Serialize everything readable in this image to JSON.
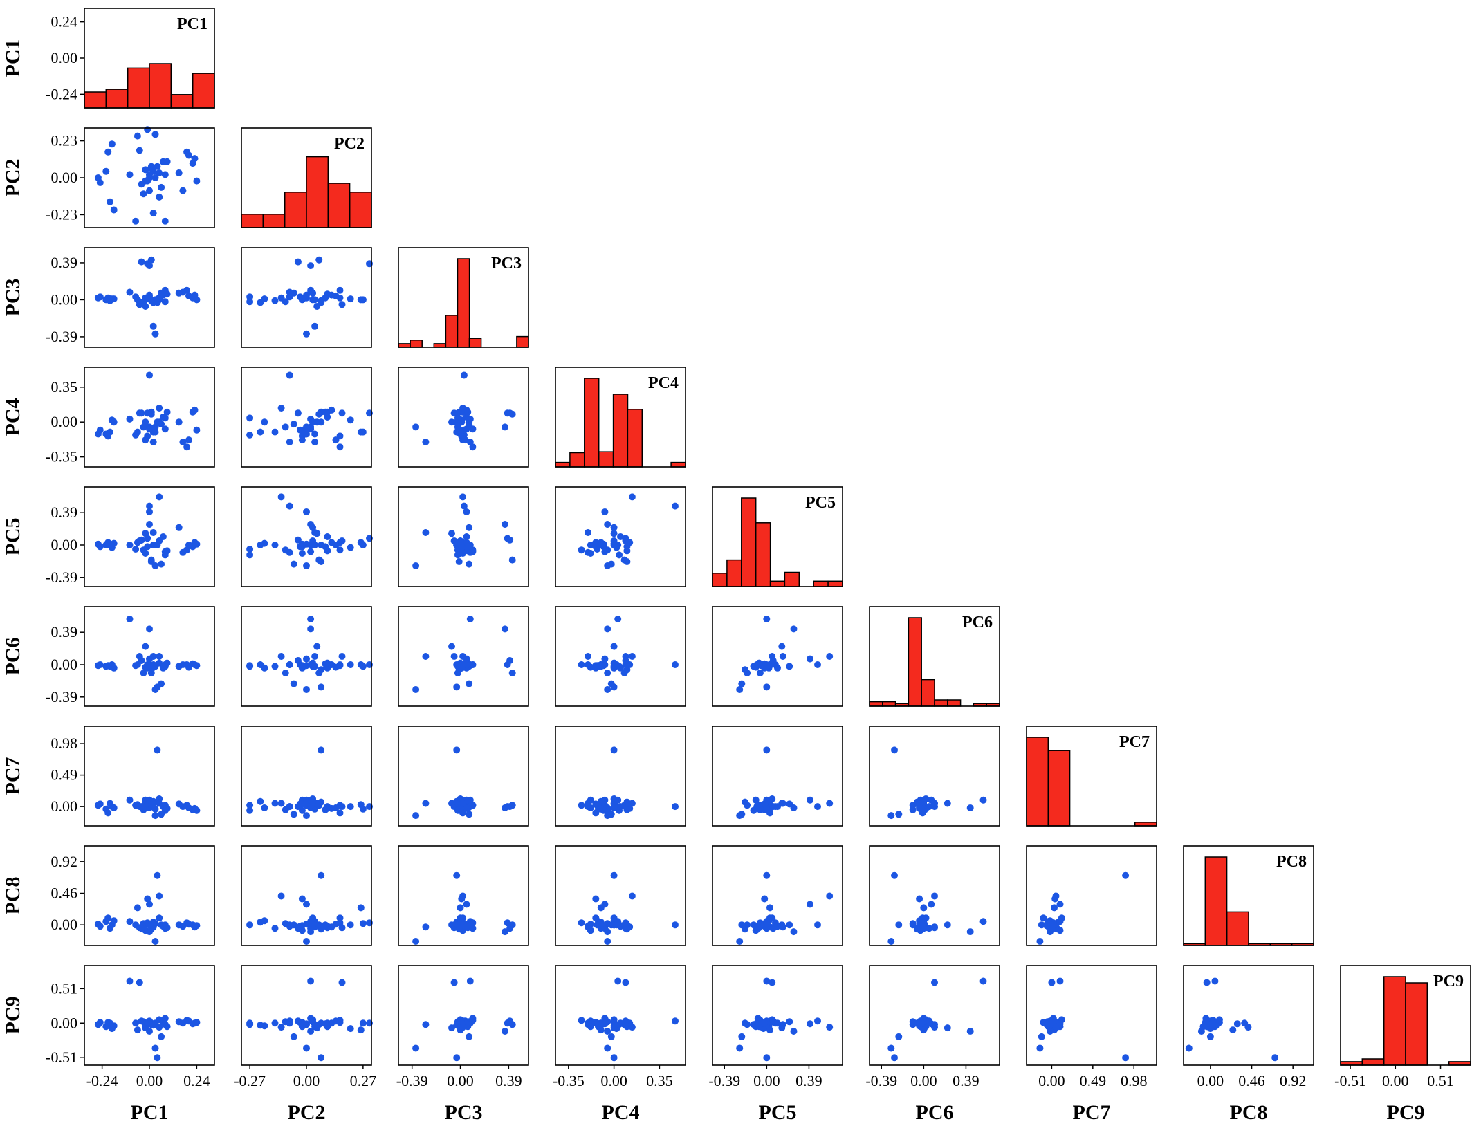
{
  "chart_data": {
    "type": "scatter-matrix",
    "variables": [
      "PC1",
      "PC2",
      "PC3",
      "PC4",
      "PC5",
      "PC6",
      "PC7",
      "PC8",
      "PC9"
    ],
    "ranges": [
      [
        -0.33,
        0.33
      ],
      [
        -0.31,
        0.31
      ],
      [
        -0.5,
        0.55
      ],
      [
        -0.45,
        0.55
      ],
      [
        -0.5,
        0.7
      ],
      [
        -0.5,
        0.7
      ],
      [
        -0.3,
        1.25
      ],
      [
        -0.3,
        1.15
      ],
      [
        -0.62,
        0.85
      ]
    ],
    "ticks": {
      "PC1": {
        "values": [
          -0.24,
          0.0,
          0.24
        ],
        "labels": [
          "-0.24",
          "0.00",
          "0.24"
        ]
      },
      "PC2": {
        "values": [
          -0.23,
          0.0,
          0.23
        ],
        "labels": [
          "-0.23",
          "0.00",
          "0.23"
        ]
      },
      "PC3": {
        "values": [
          -0.39,
          0.0,
          0.39
        ],
        "labels": [
          "-0.39",
          "0.00",
          "0.39"
        ]
      },
      "PC4": {
        "values": [
          -0.35,
          0.0,
          0.35
        ],
        "labels": [
          "-0.35",
          "0.00",
          "0.35"
        ]
      },
      "PC5": {
        "values": [
          -0.39,
          0.0,
          0.39
        ],
        "labels": [
          "-0.39",
          "0.00",
          "0.39"
        ]
      },
      "PC6": {
        "values": [
          -0.39,
          0.0,
          0.39
        ],
        "labels": [
          "-0.39",
          "0.00",
          "0.39"
        ]
      },
      "PC7": {
        "values": [
          0.0,
          0.49,
          0.98
        ],
        "labels": [
          "0.00",
          "0.49",
          "0.98"
        ]
      },
      "PC8": {
        "values": [
          0.0,
          0.46,
          0.92
        ],
        "labels": [
          "0.00",
          "0.46",
          "0.92"
        ]
      },
      "PC9": {
        "values": [
          -0.51,
          0.0,
          0.51
        ],
        "labels": [
          "-0.51",
          "0.00",
          "0.51"
        ]
      }
    },
    "bottom_ticks": {
      "PC1": {
        "values": [
          -0.24,
          0.0,
          0.24
        ],
        "labels": [
          "-0.24",
          "0.00",
          "0.24"
        ]
      },
      "PC2": {
        "values": [
          -0.27,
          0.0,
          0.27
        ],
        "labels": [
          "-0.27",
          "0.00",
          "0.27"
        ]
      },
      "PC3": {
        "values": [
          -0.39,
          0.0,
          0.39
        ],
        "labels": [
          "-0.39",
          "0.00",
          "0.39"
        ]
      },
      "PC4": {
        "values": [
          -0.35,
          0.0,
          0.35
        ],
        "labels": [
          "-0.35",
          "0.00",
          "0.35"
        ]
      },
      "PC5": {
        "values": [
          -0.39,
          0.0,
          0.39
        ],
        "labels": [
          "-0.39",
          "0.00",
          "0.39"
        ]
      },
      "PC6": {
        "values": [
          -0.39,
          0.0,
          0.39
        ],
        "labels": [
          "-0.39",
          "0.00",
          "0.39"
        ]
      },
      "PC7": {
        "values": [
          0.0,
          0.49,
          0.98
        ],
        "labels": [
          "0.00",
          "0.49",
          "0.98"
        ]
      },
      "PC8": {
        "values": [
          0.0,
          0.46,
          0.92
        ],
        "labels": [
          "0.00",
          "0.46",
          "0.92"
        ]
      },
      "PC9": {
        "values": [
          -0.51,
          0.0,
          0.51
        ],
        "labels": [
          "-0.51",
          "0.00",
          "0.51"
        ]
      }
    },
    "histograms": {
      "PC1": [
        0.18,
        0.21,
        0.45,
        0.5,
        0.15,
        0.39
      ],
      "PC2": [
        0.15,
        0.15,
        0.4,
        0.8,
        0.5,
        0.4
      ],
      "PC3": [
        0.04,
        0.08,
        0.0,
        0.04,
        0.36,
        1.0,
        0.1,
        0.0,
        0.0,
        0.0,
        0.12
      ],
      "PC4": [
        0.05,
        0.16,
        1.0,
        0.17,
        0.82,
        0.65,
        0.0,
        0.0,
        0.05
      ],
      "PC5": [
        0.15,
        0.3,
        1.0,
        0.72,
        0.06,
        0.16,
        0.0,
        0.06,
        0.06
      ],
      "PC6": [
        0.05,
        0.05,
        0.03,
        1.0,
        0.3,
        0.07,
        0.07,
        0.0,
        0.03,
        0.03
      ],
      "PC7": [
        1.0,
        0.85,
        0.0,
        0.0,
        0.0,
        0.04
      ],
      "PC8": [
        0.02,
        1.0,
        0.38,
        0.02,
        0.02,
        0.02
      ],
      "PC9": [
        0.04,
        0.07,
        1.0,
        0.93,
        0.0,
        0.04
      ]
    },
    "color_points": "#1c56e3",
    "color_bars": "#f42a1e",
    "points": [
      {
        "PC1": -0.26,
        "PC2": 0.0,
        "PC3": 0.02,
        "PC4": -0.12,
        "PC5": 0.01,
        "PC6": -0.01,
        "PC7": 0.02,
        "PC8": 0.01,
        "PC9": -0.02
      },
      {
        "PC1": -0.25,
        "PC2": -0.03,
        "PC3": 0.03,
        "PC4": -0.08,
        "PC5": -0.02,
        "PC6": 0.0,
        "PC7": 0.04,
        "PC8": -0.02,
        "PC9": 0.01
      },
      {
        "PC1": -0.22,
        "PC2": 0.04,
        "PC3": 0.0,
        "PC4": -0.12,
        "PC5": 0.0,
        "PC6": -0.02,
        "PC7": -0.04,
        "PC8": 0.05,
        "PC9": -0.05
      },
      {
        "PC1": -0.21,
        "PC2": 0.16,
        "PC3": 0.02,
        "PC4": -0.14,
        "PC5": 0.03,
        "PC6": -0.01,
        "PC7": -0.1,
        "PC8": 0.1,
        "PC9": 0.01
      },
      {
        "PC1": -0.19,
        "PC2": 0.21,
        "PC3": 0.01,
        "PC4": 0.02,
        "PC5": -0.03,
        "PC6": 0.0,
        "PC7": 0.0,
        "PC8": 0.0,
        "PC9": -0.08
      },
      {
        "PC1": -0.2,
        "PC2": -0.15,
        "PC3": -0.01,
        "PC4": -0.1,
        "PC5": 0.0,
        "PC6": -0.02,
        "PC7": 0.05,
        "PC8": -0.05,
        "PC9": 0.0
      },
      {
        "PC1": -0.18,
        "PC2": -0.2,
        "PC3": 0.01,
        "PC4": 0.0,
        "PC5": 0.02,
        "PC6": -0.04,
        "PC7": -0.02,
        "PC8": 0.06,
        "PC9": -0.04
      },
      {
        "PC1": -0.07,
        "PC2": -0.27,
        "PC3": 0.03,
        "PC4": -0.13,
        "PC5": -0.05,
        "PC6": -0.01,
        "PC7": 0.02,
        "PC8": 0.0,
        "PC9": 0.0
      },
      {
        "PC1": -0.06,
        "PC2": 0.26,
        "PC3": 0.0,
        "PC4": -0.1,
        "PC5": 0.03,
        "PC6": 0.0,
        "PC7": 0.03,
        "PC8": 0.25,
        "PC9": -0.1
      },
      {
        "PC1": -0.05,
        "PC2": 0.17,
        "PC3": -0.05,
        "PC4": 0.09,
        "PC5": 0.05,
        "PC6": 0.1,
        "PC7": 0.0,
        "PC8": -0.04,
        "PC9": 0.6
      },
      {
        "PC1": -0.02,
        "PC2": 0.05,
        "PC3": -0.07,
        "PC4": 0.0,
        "PC5": 0.14,
        "PC6": 0.22,
        "PC7": 0.05,
        "PC8": 0.0,
        "PC9": -0.07
      },
      {
        "PC1": -0.03,
        "PC2": -0.1,
        "PC3": -0.02,
        "PC4": -0.05,
        "PC5": -0.06,
        "PC6": -0.1,
        "PC7": -0.05,
        "PC8": 0.02,
        "PC9": 0.02
      },
      {
        "PC1": -0.02,
        "PC2": -0.02,
        "PC3": 0.02,
        "PC4": -0.18,
        "PC5": -0.1,
        "PC6": -0.03,
        "PC7": 0.1,
        "PC8": -0.08,
        "PC9": -0.05
      },
      {
        "PC1": -0.01,
        "PC2": 0.3,
        "PC3": 0.38,
        "PC4": 0.09,
        "PC5": 0.08,
        "PC6": 0.0,
        "PC7": 0.0,
        "PC8": 0.03,
        "PC9": 0.0
      },
      {
        "PC1": 0.0,
        "PC2": 0.02,
        "PC3": 0.36,
        "PC4": -0.05,
        "PC5": 0.25,
        "PC6": 0.43,
        "PC7": -0.02,
        "PC8": -0.1,
        "PC9": -0.12
      },
      {
        "PC1": 0.0,
        "PC2": -0.08,
        "PC3": 0.03,
        "PC4": 0.47,
        "PC5": 0.47,
        "PC6": 0.0,
        "PC7": 0.0,
        "PC8": 0.0,
        "PC9": 0.03
      },
      {
        "PC1": 0.01,
        "PC2": 0.07,
        "PC3": -0.01,
        "PC4": 0.1,
        "PC5": -0.2,
        "PC6": -0.06,
        "PC7": 0.07,
        "PC8": -0.06,
        "PC9": 0.0
      },
      {
        "PC1": 0.02,
        "PC2": -0.22,
        "PC3": -0.03,
        "PC4": -0.1,
        "PC5": 0.0,
        "PC6": 0.0,
        "PC7": 0.08,
        "PC8": 0.04,
        "PC9": -0.03
      },
      {
        "PC1": 0.02,
        "PC2": 0.04,
        "PC3": -0.28,
        "PC4": -0.2,
        "PC5": 0.15,
        "PC6": 0.1,
        "PC7": 0.05,
        "PC8": -0.03,
        "PC9": -0.02
      },
      {
        "PC1": 0.03,
        "PC2": 0.0,
        "PC3": -0.36,
        "PC4": -0.05,
        "PC5": -0.25,
        "PC6": -0.3,
        "PC7": -0.14,
        "PC8": -0.24,
        "PC9": -0.37
      },
      {
        "PC1": 0.04,
        "PC2": 0.07,
        "PC3": -0.03,
        "PC4": 0.0,
        "PC5": 0.0,
        "PC6": -0.27,
        "PC7": 0.88,
        "PC8": 0.72,
        "PC9": -0.51
      },
      {
        "PC1": 0.05,
        "PC2": 0.03,
        "PC3": 0.0,
        "PC4": 0.0,
        "PC5": 0.05,
        "PC6": 0.02,
        "PC7": 0.12,
        "PC8": 0.1,
        "PC9": 0.05
      },
      {
        "PC1": 0.06,
        "PC2": -0.06,
        "PC3": 0.07,
        "PC4": -0.02,
        "PC5": -0.23,
        "PC6": -0.23,
        "PC7": -0.12,
        "PC8": 0.0,
        "PC9": -0.2
      },
      {
        "PC1": 0.07,
        "PC2": 0.1,
        "PC3": 0.05,
        "PC4": 0.05,
        "PC5": 0.1,
        "PC6": -0.04,
        "PC7": 0.0,
        "PC8": -0.02,
        "PC9": 0.0
      },
      {
        "PC1": 0.08,
        "PC2": 0.02,
        "PC3": 0.1,
        "PC4": -0.07,
        "PC5": -0.08,
        "PC6": 0.0,
        "PC7": 0.02,
        "PC8": -0.05,
        "PC9": 0.07
      },
      {
        "PC1": 0.08,
        "PC2": -0.27,
        "PC3": -0.02,
        "PC4": 0.04,
        "PC5": -0.12,
        "PC6": -0.02,
        "PC7": -0.06,
        "PC8": 0.0,
        "PC9": -0.02
      },
      {
        "PC1": 0.09,
        "PC2": 0.1,
        "PC3": 0.06,
        "PC4": 0.1,
        "PC5": -0.07,
        "PC6": 0.02,
        "PC7": -0.03,
        "PC8": -0.04,
        "PC9": -0.05
      },
      {
        "PC1": 0.15,
        "PC2": 0.03,
        "PC3": 0.07,
        "PC4": 0.0,
        "PC5": 0.21,
        "PC6": -0.02,
        "PC7": 0.04,
        "PC8": 0.0,
        "PC9": 0.02
      },
      {
        "PC1": 0.17,
        "PC2": -0.08,
        "PC3": 0.08,
        "PC4": -0.2,
        "PC5": -0.09,
        "PC6": 0.0,
        "PC7": 0.0,
        "PC8": -0.02,
        "PC9": 0.0
      },
      {
        "PC1": 0.19,
        "PC2": 0.16,
        "PC3": 0.1,
        "PC4": -0.25,
        "PC5": -0.06,
        "PC6": 0.0,
        "PC7": 0.02,
        "PC8": 0.03,
        "PC9": 0.04
      },
      {
        "PC1": 0.2,
        "PC2": 0.14,
        "PC3": 0.04,
        "PC4": -0.18,
        "PC5": 0.0,
        "PC6": -0.03,
        "PC7": -0.02,
        "PC8": 0.01,
        "PC9": 0.03
      },
      {
        "PC1": 0.22,
        "PC2": 0.09,
        "PC3": 0.02,
        "PC4": 0.1,
        "PC5": -0.02,
        "PC6": 0.01,
        "PC7": -0.05,
        "PC8": 0.0,
        "PC9": -0.01
      },
      {
        "PC1": 0.23,
        "PC2": 0.12,
        "PC3": 0.05,
        "PC4": 0.12,
        "PC5": 0.03,
        "PC6": 0.0,
        "PC7": -0.03,
        "PC8": -0.03,
        "PC9": 0.0
      },
      {
        "PC1": 0.24,
        "PC2": -0.02,
        "PC3": 0.0,
        "PC4": -0.08,
        "PC5": 0.01,
        "PC6": -0.01,
        "PC7": -0.06,
        "PC8": -0.01,
        "PC9": 0.01
      },
      {
        "PC1": 0.03,
        "PC2": 0.27,
        "PC3": 0.0,
        "PC4": -0.1,
        "PC5": 0.0,
        "PC6": -0.02,
        "PC7": -0.04,
        "PC8": 0.02,
        "PC9": 0.0
      },
      {
        "PC1": -0.01,
        "PC2": -0.02,
        "PC3": 0.01,
        "PC4": -0.14,
        "PC5": -0.02,
        "PC6": -0.04,
        "PC7": 0.04,
        "PC8": 0.38,
        "PC9": 0.0
      },
      {
        "PC1": 0.01,
        "PC2": 0.06,
        "PC3": 0.42,
        "PC4": 0.08,
        "PC5": -0.18,
        "PC6": -0.1,
        "PC7": 0.02,
        "PC8": 0.0,
        "PC9": -0.02
      },
      {
        "PC1": -0.04,
        "PC2": -0.04,
        "PC3": 0.4,
        "PC4": 0.09,
        "PC5": 0.06,
        "PC6": 0.05,
        "PC7": 0.0,
        "PC8": -0.05,
        "PC9": 0.03
      },
      {
        "PC1": 0.0,
        "PC2": 0.0,
        "PC3": 0.05,
        "PC4": -0.07,
        "PC5": 0.4,
        "PC6": 0.07,
        "PC7": 0.1,
        "PC8": 0.3,
        "PC9": -0.01
      },
      {
        "PC1": 0.05,
        "PC2": -0.12,
        "PC3": 0.02,
        "PC4": 0.14,
        "PC5": 0.58,
        "PC6": 0.1,
        "PC7": 0.05,
        "PC8": 0.42,
        "PC9": -0.06
      },
      {
        "PC1": -0.1,
        "PC2": 0.02,
        "PC3": 0.08,
        "PC4": 0.03,
        "PC5": 0.0,
        "PC6": 0.55,
        "PC7": 0.1,
        "PC8": 0.05,
        "PC9": 0.62
      }
    ]
  }
}
